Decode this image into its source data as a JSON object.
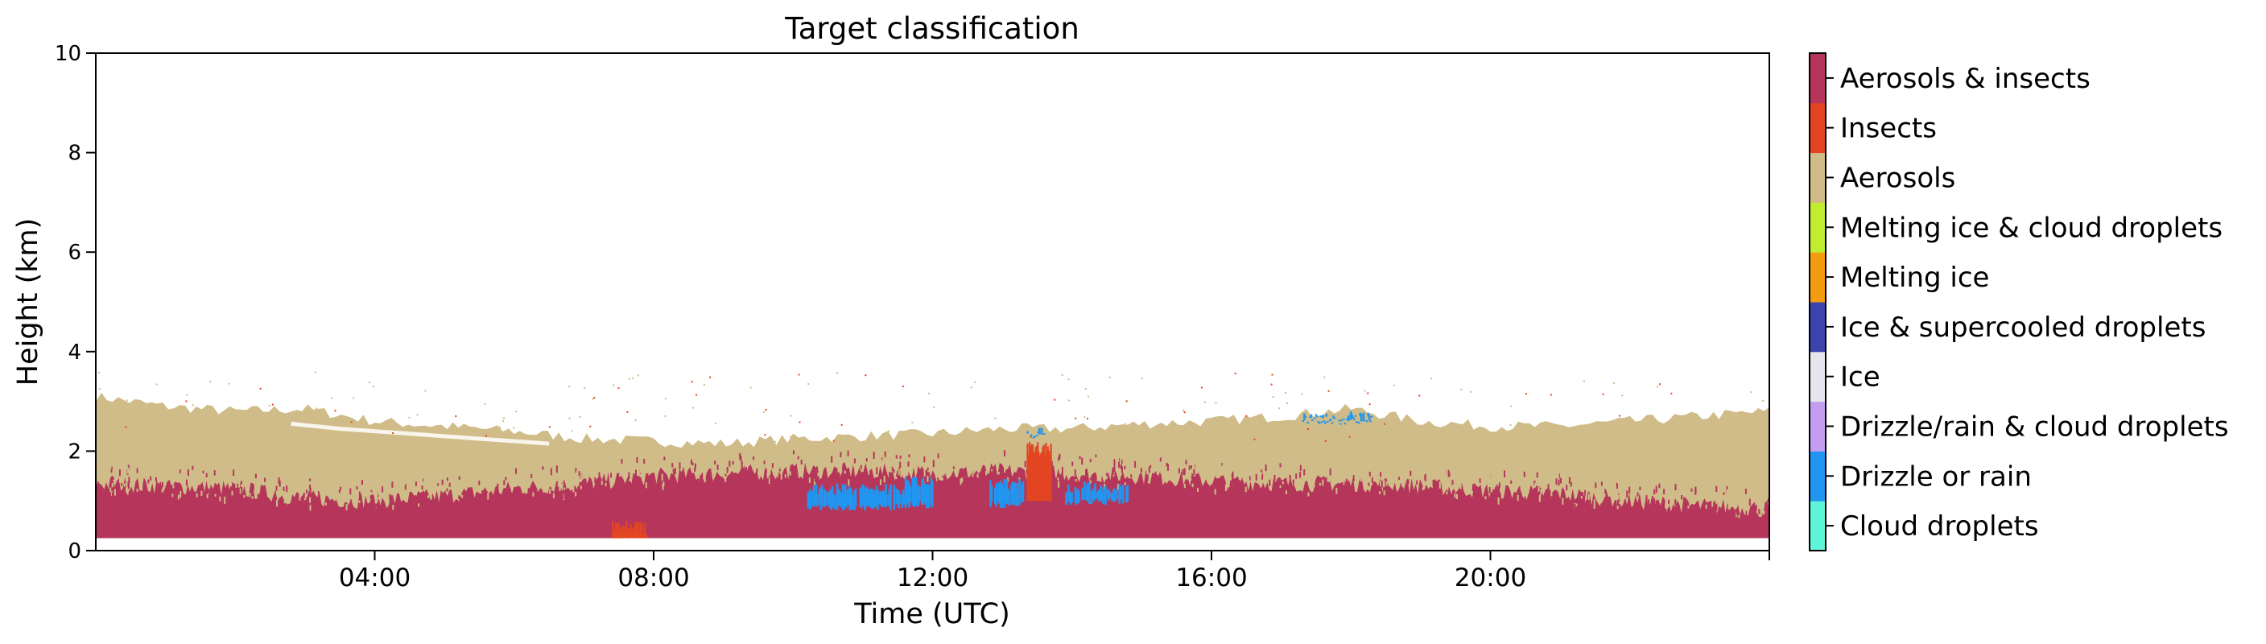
{
  "chart_data": {
    "type": "heatmap",
    "title": "Target classification",
    "xlabel": "Time (UTC)",
    "ylabel": "Height (km)",
    "x_unit": "hours UTC",
    "xlim": [
      0,
      24
    ],
    "ylim": [
      0,
      10
    ],
    "x_ticks": [
      {
        "value": 4,
        "label": "04:00"
      },
      {
        "value": 8,
        "label": "08:00"
      },
      {
        "value": 12,
        "label": "12:00"
      },
      {
        "value": 16,
        "label": "16:00"
      },
      {
        "value": 20,
        "label": "20:00"
      }
    ],
    "y_ticks": [
      {
        "value": 0,
        "label": "0"
      },
      {
        "value": 2,
        "label": "2"
      },
      {
        "value": 4,
        "label": "4"
      },
      {
        "value": 6,
        "label": "6"
      },
      {
        "value": 8,
        "label": "8"
      },
      {
        "value": 10,
        "label": "10"
      }
    ],
    "classes": [
      {
        "label": "Cloud droplets",
        "color": "#5ff5d8"
      },
      {
        "label": "Drizzle or rain",
        "color": "#2196f0"
      },
      {
        "label": "Drizzle/rain & cloud droplets",
        "color": "#c39ef0"
      },
      {
        "label": "Ice",
        "color": "#e6e4ec"
      },
      {
        "label": "Ice & supercooled droplets",
        "color": "#3d43ad"
      },
      {
        "label": "Melting ice",
        "color": "#f39c0f"
      },
      {
        "label": "Melting ice & cloud droplets",
        "color": "#c1ec2f"
      },
      {
        "label": "Aerosols",
        "color": "#cfbc88"
      },
      {
        "label": "Insects",
        "color": "#e34522"
      },
      {
        "label": "Aerosols & insects",
        "color": "#b5365a"
      }
    ],
    "layers": {
      "ground_clutter_top_km": 0.25,
      "aerosol_top_km": [
        {
          "t": 0,
          "h": 3.1
        },
        {
          "t": 1,
          "h": 2.9
        },
        {
          "t": 2,
          "h": 2.8
        },
        {
          "t": 3,
          "h": 2.85
        },
        {
          "t": 4,
          "h": 2.6
        },
        {
          "t": 5,
          "h": 2.5
        },
        {
          "t": 6,
          "h": 2.4
        },
        {
          "t": 7,
          "h": 2.25
        },
        {
          "t": 8,
          "h": 2.2
        },
        {
          "t": 9,
          "h": 2.15
        },
        {
          "t": 10,
          "h": 2.25
        },
        {
          "t": 11,
          "h": 2.3
        },
        {
          "t": 12,
          "h": 2.35
        },
        {
          "t": 13,
          "h": 2.45
        },
        {
          "t": 14,
          "h": 2.45
        },
        {
          "t": 15,
          "h": 2.55
        },
        {
          "t": 16,
          "h": 2.6
        },
        {
          "t": 17,
          "h": 2.7
        },
        {
          "t": 18,
          "h": 2.85
        },
        {
          "t": 19,
          "h": 2.6
        },
        {
          "t": 20,
          "h": 2.5
        },
        {
          "t": 21,
          "h": 2.5
        },
        {
          "t": 22,
          "h": 2.6
        },
        {
          "t": 23,
          "h": 2.7
        },
        {
          "t": 24,
          "h": 2.8
        }
      ],
      "aerosols_insects_top_km": [
        {
          "t": 0,
          "h": 1.35
        },
        {
          "t": 1,
          "h": 1.3
        },
        {
          "t": 2,
          "h": 1.25
        },
        {
          "t": 3,
          "h": 1.05
        },
        {
          "t": 4,
          "h": 1.0
        },
        {
          "t": 5,
          "h": 1.1
        },
        {
          "t": 6,
          "h": 1.25
        },
        {
          "t": 7,
          "h": 1.35
        },
        {
          "t": 8,
          "h": 1.5
        },
        {
          "t": 9,
          "h": 1.55
        },
        {
          "t": 10,
          "h": 1.6
        },
        {
          "t": 11,
          "h": 1.6
        },
        {
          "t": 12,
          "h": 1.55
        },
        {
          "t": 13,
          "h": 1.6
        },
        {
          "t": 14,
          "h": 1.55
        },
        {
          "t": 15,
          "h": 1.5
        },
        {
          "t": 16,
          "h": 1.4
        },
        {
          "t": 17,
          "h": 1.35
        },
        {
          "t": 18,
          "h": 1.35
        },
        {
          "t": 19,
          "h": 1.3
        },
        {
          "t": 20,
          "h": 1.2
        },
        {
          "t": 21,
          "h": 1.15
        },
        {
          "t": 22,
          "h": 1.0
        },
        {
          "t": 23,
          "h": 0.9
        },
        {
          "t": 24,
          "h": 0.85
        }
      ],
      "aerosol_gap_km": [
        {
          "t": 2.8,
          "h": 2.55
        },
        {
          "t": 3.5,
          "h": 2.45
        },
        {
          "t": 4.5,
          "h": 2.35
        },
        {
          "t": 5.5,
          "h": 2.25
        },
        {
          "t": 6.5,
          "h": 2.15
        }
      ],
      "drizzle_patches": [
        {
          "t0": 10.2,
          "t1": 11.6,
          "h0": 0.8,
          "h1": 1.35
        },
        {
          "t0": 11.6,
          "t1": 12.0,
          "h0": 0.85,
          "h1": 1.5
        },
        {
          "t0": 12.8,
          "t1": 13.3,
          "h0": 0.85,
          "h1": 1.45
        },
        {
          "t0": 13.9,
          "t1": 14.8,
          "h0": 0.9,
          "h1": 1.4
        },
        {
          "t0": 13.35,
          "t1": 13.6,
          "h0": 2.25,
          "h1": 2.5
        },
        {
          "t0": 17.3,
          "t1": 18.3,
          "h0": 2.6,
          "h1": 2.8
        }
      ],
      "insect_patches": [
        {
          "t0": 13.35,
          "t1": 13.7,
          "h0": 1.0,
          "h1": 2.2
        },
        {
          "t0": 7.4,
          "t1": 7.9,
          "h0": 0.25,
          "h1": 0.6
        }
      ]
    }
  }
}
